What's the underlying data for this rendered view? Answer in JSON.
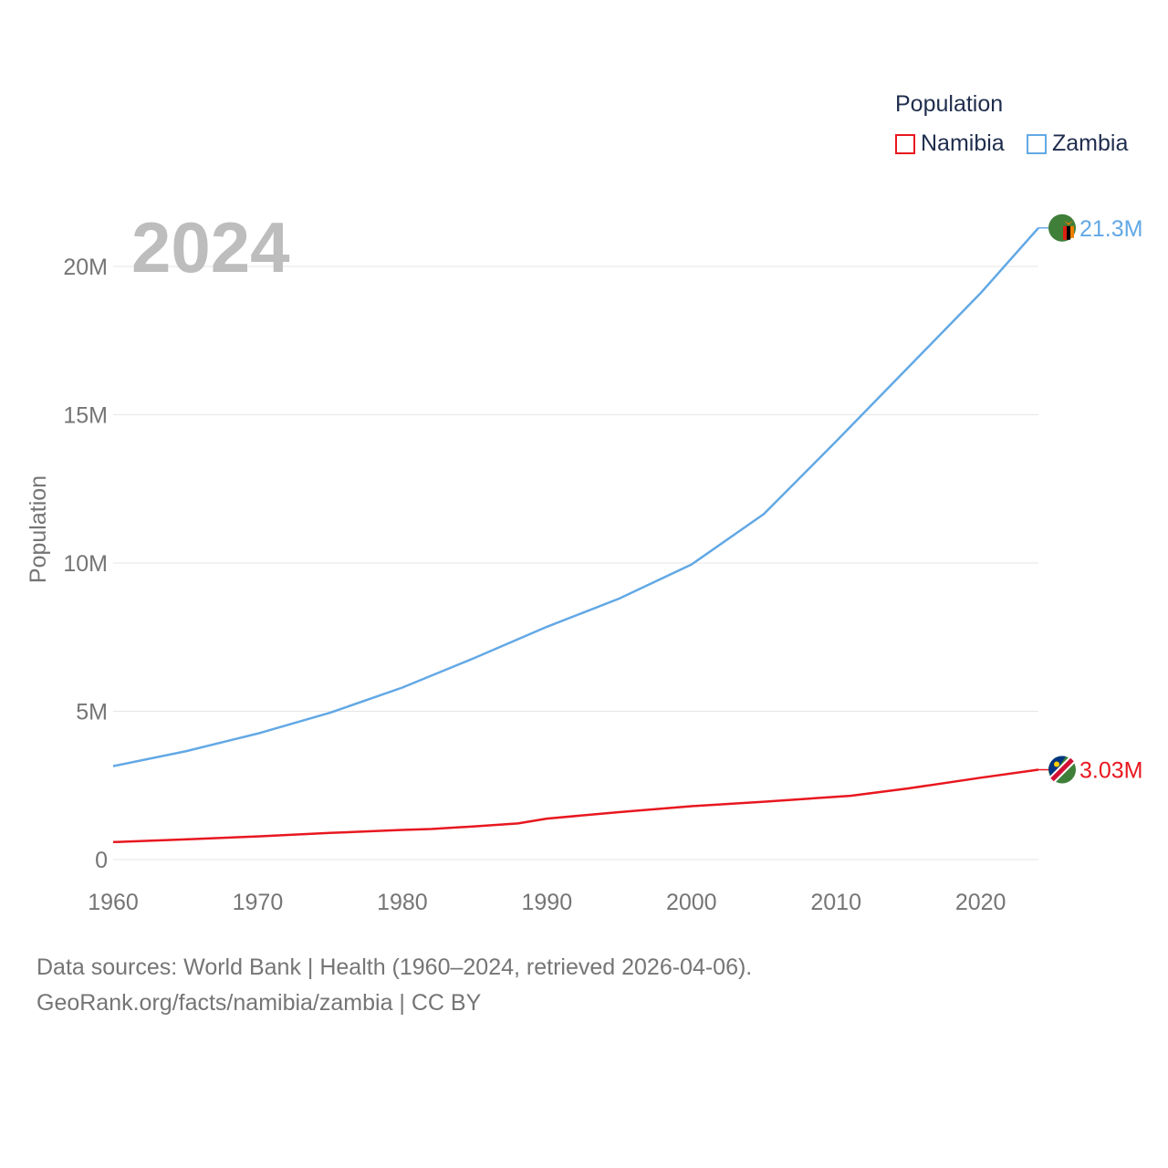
{
  "legend": {
    "title": "Population",
    "items": [
      {
        "label": "Namibia",
        "color": "#e8171f"
      },
      {
        "label": "Zambia",
        "color": "#62a8e5"
      }
    ]
  },
  "year_label": "2024",
  "footer": {
    "line1": "Data sources: World Bank | Health (1960–2024, retrieved 2026-04-06).",
    "line2": "GeoRank.org/facts/namibia/zambia | CC BY"
  },
  "chart_data": {
    "type": "line",
    "title": "",
    "xlabel": "",
    "ylabel": "Population",
    "xlim": [
      1960,
      2024
    ],
    "ylim": [
      0,
      20000000
    ],
    "x_ticks": [
      1960,
      1970,
      1980,
      1990,
      2000,
      2010,
      2020
    ],
    "x_tick_labels": [
      "1960",
      "1970",
      "1980",
      "1990",
      "2000",
      "2010",
      "2020"
    ],
    "y_ticks": [
      0,
      5000000,
      10000000,
      15000000,
      20000000
    ],
    "y_tick_labels": [
      "0",
      "5M",
      "10M",
      "15M",
      "20M"
    ],
    "grid": true,
    "series": [
      {
        "name": "Namibia",
        "color": "#e8171f",
        "end_label": "3.03M",
        "x": [
          1960,
          1965,
          1970,
          1975,
          1980,
          1982,
          1985,
          1988,
          1990,
          1995,
          2000,
          2005,
          2011,
          2015,
          2020,
          2024
        ],
        "values": [
          590000,
          680000,
          780000,
          900000,
          1000000,
          1030000,
          1120000,
          1220000,
          1380000,
          1600000,
          1800000,
          1950000,
          2150000,
          2400000,
          2760000,
          3030000
        ]
      },
      {
        "name": "Zambia",
        "color": "#62a8e5",
        "end_label": "21.3M",
        "x": [
          1960,
          1965,
          1970,
          1975,
          1980,
          1985,
          1990,
          1995,
          2000,
          2005,
          2010,
          2015,
          2020,
          2024
        ],
        "values": [
          3150000,
          3650000,
          4250000,
          4950000,
          5800000,
          6800000,
          7850000,
          8800000,
          9950000,
          11650000,
          14100000,
          16600000,
          19100000,
          21300000
        ]
      }
    ]
  }
}
